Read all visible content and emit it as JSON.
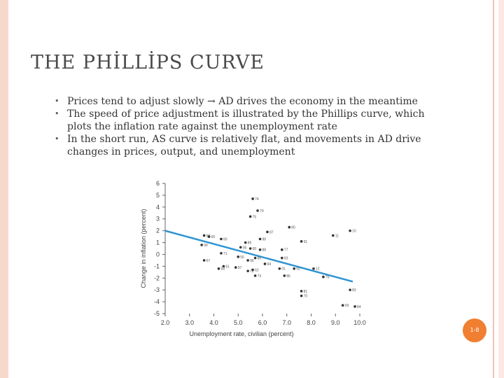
{
  "slide": {
    "title": "THE PHİLLİPS  CURVE",
    "bullets": [
      "Prices tend to adjust slowly  → AD drives the economy in the meantime",
      "The speed of price adjustment is illustrated by the Phillips curve, which plots the inflation rate against the unemployment rate",
      "In the short run, AS curve is relatively flat, and movements in AD drive changes in prices, output, and unemployment"
    ],
    "page_number": "1-8"
  },
  "chart_data": {
    "type": "scatter",
    "title": "",
    "xlabel": "Unemployment rate, civilian (percent)",
    "ylabel": "Change in inflation (percent)",
    "xlim": [
      2.0,
      10.0
    ],
    "ylim": [
      -5,
      6
    ],
    "xticks": [
      "2.0",
      "3.0",
      "4.0",
      "5.0",
      "6.0",
      "7.0",
      "8.0",
      "9.0",
      "10.0"
    ],
    "yticks": [
      "6",
      "5",
      "4",
      "3",
      "2",
      "1",
      "0",
      "-1",
      "-2",
      "-3",
      "-4",
      "-5"
    ],
    "grid": false,
    "colors": {
      "points": "#333333",
      "fit_line": "#2f95d3",
      "axis": "#666666"
    },
    "points": [
      {
        "label": "74",
        "x": 5.6,
        "y": 4.7
      },
      {
        "label": "79",
        "x": 5.8,
        "y": 3.7
      },
      {
        "label": "75",
        "x": 5.5,
        "y": 3.2
      },
      {
        "label": "80",
        "x": 7.1,
        "y": 2.3
      },
      {
        "label": "10",
        "x": 9.6,
        "y": 2.0
      },
      {
        "label": "87",
        "x": 6.2,
        "y": 1.9
      },
      {
        "label": "11",
        "x": 8.9,
        "y": 1.6
      },
      {
        "label": "68",
        "x": 3.6,
        "y": 1.6
      },
      {
        "label": "66",
        "x": 3.8,
        "y": 1.5
      },
      {
        "label": "90",
        "x": 4.3,
        "y": 1.3
      },
      {
        "label": "98",
        "x": 5.9,
        "y": 1.3
      },
      {
        "label": "91",
        "x": 7.6,
        "y": 1.1
      },
      {
        "label": "89",
        "x": 5.3,
        "y": 1.0
      },
      {
        "label": "99",
        "x": 3.5,
        "y": 0.8
      },
      {
        "label": "05",
        "x": 5.1,
        "y": 0.6
      },
      {
        "label": "77",
        "x": 6.8,
        "y": 0.4
      },
      {
        "label": "00",
        "x": 5.5,
        "y": 0.5
      },
      {
        "label": "88",
        "x": 5.9,
        "y": 0.4
      },
      {
        "label": "71",
        "x": 4.3,
        "y": 0.1
      },
      {
        "label": "93",
        "x": 6.8,
        "y": -0.3
      },
      {
        "label": "67",
        "x": 3.6,
        "y": -0.5
      },
      {
        "label": "55",
        "x": 5.0,
        "y": -0.2
      },
      {
        "label": "85",
        "x": 5.7,
        "y": -0.3
      },
      {
        "label": "96",
        "x": 5.4,
        "y": -0.5
      },
      {
        "label": "94",
        "x": 6.1,
        "y": -0.8
      },
      {
        "label": "61",
        "x": 4.4,
        "y": -1.0
      },
      {
        "label": "97",
        "x": 4.9,
        "y": -1.1
      },
      {
        "label": "58",
        "x": 4.2,
        "y": -1.2
      },
      {
        "label": "62",
        "x": 5.6,
        "y": -1.3
      },
      {
        "label": "72",
        "x": 5.4,
        "y": -1.4
      },
      {
        "label": "01",
        "x": 6.7,
        "y": -1.2
      },
      {
        "label": "92",
        "x": 7.3,
        "y": -1.2
      },
      {
        "label": "12",
        "x": 8.1,
        "y": -1.2
      },
      {
        "label": "73",
        "x": 5.7,
        "y": -1.8
      },
      {
        "label": "86",
        "x": 6.9,
        "y": -1.8
      },
      {
        "label": "75b",
        "x": 8.5,
        "y": -1.9
      },
      {
        "label": "83",
        "x": 9.6,
        "y": -3.0
      },
      {
        "label": "81",
        "x": 7.6,
        "y": -3.1
      },
      {
        "label": "70",
        "x": 7.6,
        "y": -3.5
      },
      {
        "label": "09",
        "x": 9.3,
        "y": -4.3
      },
      {
        "label": "84",
        "x": 9.8,
        "y": -4.4
      }
    ],
    "fit_line": {
      "x": [
        2.0,
        10.0
      ],
      "y": [
        2.0,
        -2.3
      ]
    }
  }
}
